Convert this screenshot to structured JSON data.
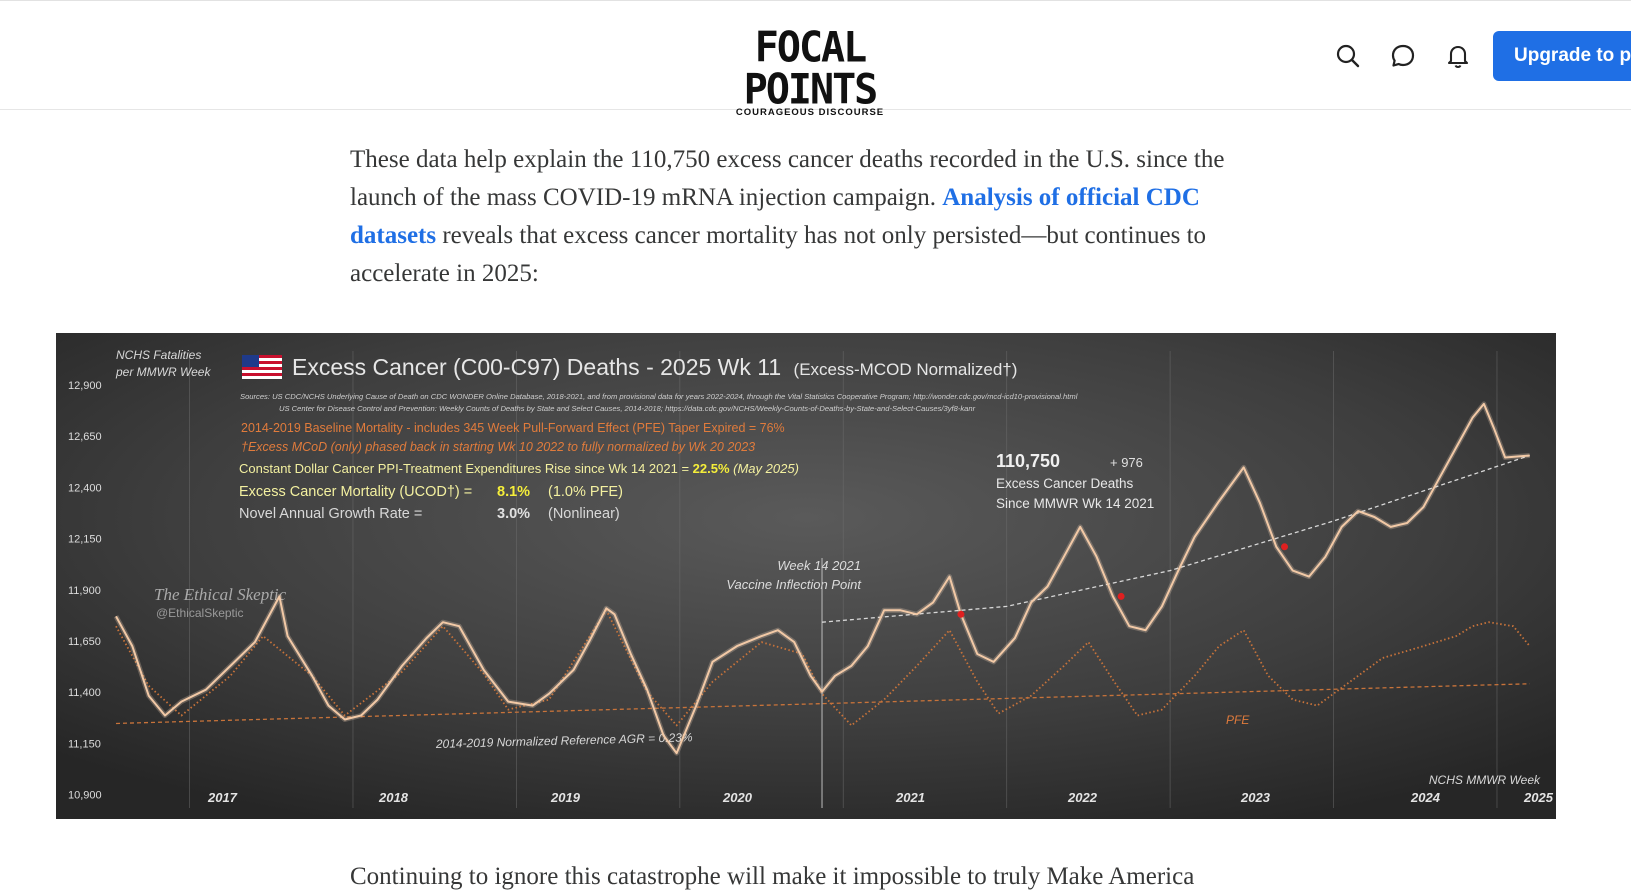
{
  "header": {
    "logo_title": "FOCAL POINTS",
    "logo_subtitle": "COURAGEOUS DISCOURSE",
    "icons": [
      "search-icon",
      "chat-bubble-icon",
      "bell-icon"
    ],
    "upgrade_label": "Upgrade to pa",
    "accent_color": "#1f6fe5"
  },
  "article": {
    "para1_part1": "These data help explain the 110,750 excess cancer deaths recorded in the U.S. since the launch of the mass COVID-19 mRNA injection campaign.",
    "para1_link": "Analysis of official CDC datasets",
    "para1_part2": " reveals that excess cancer mortality has not only persisted—but continues to accelerate in 2025:",
    "para2": "Continuing to ignore this catastrophe will make it impossible to truly Make America"
  },
  "chart_data": {
    "type": "line",
    "title": "Excess Cancer (C00-C97) Deaths - 2025 Wk 11",
    "title_suffix": "(Excess-MCOD  Normalized†)",
    "ylabel_line1": "NCHS Fatalities",
    "ylabel_line2": "per MMWR Week",
    "xlabel": "NCHS MMWR Week",
    "sources_line1": "Sources:  US CDC/NCHS Underlying  Cause of Death on CDC WONDER Online Database, 2018-2021, and from provisional data for years 2022-2024, through the Vital Statistics Cooperative Program; http://wonder.cdc.gov/mcd-icd10-provisional.html",
    "sources_line2": "US Center for Disease Control and Prevention: Weekly  Counts of Deaths by State and Select Causes, 2014-2018; https://data.cdc.gov/NCHS/Weekly-Counts-of-Deaths-by-State-and-Select-Causes/3yf8-kanr",
    "note_baseline": "2014-2019 Baseline Mortality - includes 345 Week Pull-Forward Effect (PFE) Taper Expired =  76%",
    "note_mcod": "†Excess  MCoD (only) phased back in starting  Wk 10 2022 to fully normalized  by Wk 20 2023",
    "note_ppi_label": "Constant Dollar Cancer PPI-Treatment Expenditures Rise since Wk 14 2021  = ",
    "note_ppi_value": "22.5%",
    "note_ppi_suffix": " (May 2025)",
    "excess_label": "Excess Cancer Mortality (UCOD†) =",
    "excess_value": "8.1%",
    "excess_pfe": "(1.0% PFE)",
    "growth_label": "Novel Annual Growth Rate  =",
    "growth_value": "3.0%",
    "growth_suffix": "(Nonlinear)",
    "total_value": "110,750",
    "total_increment": "+ 976",
    "total_label1": "Excess Cancer Deaths",
    "total_label2": "Since MMWR Wk 14 2021",
    "vaccine_label1": "Week 14 2021",
    "vaccine_label2": "Vaccine Inflection Point",
    "reference_label": "2014-2019 Normalized Reference  AGR = 0.23%",
    "pfe_label": "PFE",
    "watermark1": "The Ethical Skeptic",
    "watermark2": "@EthicalSkeptic",
    "y_ticks": [
      "12,900",
      "12,650",
      "12,400",
      "12,150",
      "11,900",
      "11,650",
      "11,400",
      "11,150",
      "10,900"
    ],
    "x_labels": [
      "2017",
      "2018",
      "2019",
      "2020",
      "2021",
      "2022",
      "2023",
      "2024",
      "2025"
    ],
    "ylim": [
      10900,
      12900
    ],
    "xlim": [
      2016.55,
      2025.3
    ],
    "series": [
      {
        "kind": "excess",
        "color": "#f2c9a6",
        "points": [
          [
            2016.55,
            11750
          ],
          [
            2016.65,
            11600
          ],
          [
            2016.75,
            11350
          ],
          [
            2016.85,
            11250
          ],
          [
            2016.95,
            11320
          ],
          [
            2017.1,
            11380
          ],
          [
            2017.25,
            11500
          ],
          [
            2017.4,
            11620
          ],
          [
            2017.55,
            11850
          ],
          [
            2017.6,
            11650
          ],
          [
            2017.75,
            11450
          ],
          [
            2017.85,
            11300
          ],
          [
            2017.95,
            11230
          ],
          [
            2018.05,
            11250
          ],
          [
            2018.15,
            11330
          ],
          [
            2018.3,
            11500
          ],
          [
            2018.45,
            11640
          ],
          [
            2018.55,
            11720
          ],
          [
            2018.65,
            11700
          ],
          [
            2018.8,
            11480
          ],
          [
            2018.95,
            11320
          ],
          [
            2019.1,
            11300
          ],
          [
            2019.2,
            11360
          ],
          [
            2019.35,
            11480
          ],
          [
            2019.45,
            11630
          ],
          [
            2019.55,
            11790
          ],
          [
            2019.6,
            11760
          ],
          [
            2019.7,
            11560
          ],
          [
            2019.8,
            11380
          ],
          [
            2019.9,
            11150
          ],
          [
            2019.98,
            11060
          ],
          [
            2020.1,
            11300
          ],
          [
            2020.2,
            11520
          ],
          [
            2020.35,
            11600
          ],
          [
            2020.5,
            11650
          ],
          [
            2020.6,
            11680
          ],
          [
            2020.7,
            11620
          ],
          [
            2020.8,
            11450
          ],
          [
            2020.87,
            11370
          ],
          [
            2020.95,
            11450
          ],
          [
            2021.05,
            11500
          ],
          [
            2021.15,
            11600
          ],
          [
            2021.25,
            11780
          ],
          [
            2021.35,
            11780
          ],
          [
            2021.45,
            11760
          ],
          [
            2021.55,
            11820
          ],
          [
            2021.65,
            11950
          ],
          [
            2021.72,
            11760
          ],
          [
            2021.82,
            11560
          ],
          [
            2021.92,
            11520
          ],
          [
            2022.05,
            11640
          ],
          [
            2022.15,
            11820
          ],
          [
            2022.25,
            11900
          ],
          [
            2022.35,
            12050
          ],
          [
            2022.45,
            12200
          ],
          [
            2022.55,
            12050
          ],
          [
            2022.65,
            11850
          ],
          [
            2022.75,
            11700
          ],
          [
            2022.85,
            11680
          ],
          [
            2022.95,
            11800
          ],
          [
            2023.05,
            11980
          ],
          [
            2023.15,
            12150
          ],
          [
            2023.3,
            12330
          ],
          [
            2023.45,
            12500
          ],
          [
            2023.55,
            12320
          ],
          [
            2023.65,
            12100
          ],
          [
            2023.75,
            11980
          ],
          [
            2023.85,
            11950
          ],
          [
            2023.95,
            12050
          ],
          [
            2024.05,
            12200
          ],
          [
            2024.15,
            12280
          ],
          [
            2024.25,
            12250
          ],
          [
            2024.35,
            12200
          ],
          [
            2024.45,
            12220
          ],
          [
            2024.55,
            12300
          ],
          [
            2024.65,
            12450
          ],
          [
            2024.75,
            12600
          ],
          [
            2024.85,
            12750
          ],
          [
            2024.92,
            12820
          ],
          [
            2024.98,
            12700
          ],
          [
            2025.05,
            12550
          ],
          [
            2025.2,
            12560
          ]
        ]
      },
      {
        "kind": "pfe",
        "color": "#c8733a",
        "points": [
          [
            2016.55,
            11700
          ],
          [
            2016.75,
            11400
          ],
          [
            2016.95,
            11250
          ],
          [
            2017.25,
            11450
          ],
          [
            2017.45,
            11650
          ],
          [
            2017.75,
            11450
          ],
          [
            2017.95,
            11250
          ],
          [
            2018.3,
            11470
          ],
          [
            2018.55,
            11700
          ],
          [
            2018.8,
            11460
          ],
          [
            2018.95,
            11280
          ],
          [
            2019.2,
            11330
          ],
          [
            2019.55,
            11780
          ],
          [
            2019.8,
            11370
          ],
          [
            2019.98,
            11200
          ],
          [
            2020.2,
            11420
          ],
          [
            2020.5,
            11620
          ],
          [
            2020.75,
            11560
          ],
          [
            2020.87,
            11360
          ],
          [
            2021.05,
            11200
          ],
          [
            2021.25,
            11330
          ],
          [
            2021.45,
            11500
          ],
          [
            2021.65,
            11680
          ],
          [
            2021.82,
            11420
          ],
          [
            2021.95,
            11260
          ],
          [
            2022.15,
            11350
          ],
          [
            2022.35,
            11500
          ],
          [
            2022.5,
            11620
          ],
          [
            2022.65,
            11430
          ],
          [
            2022.8,
            11250
          ],
          [
            2022.95,
            11280
          ],
          [
            2023.15,
            11450
          ],
          [
            2023.3,
            11600
          ],
          [
            2023.45,
            11680
          ],
          [
            2023.6,
            11450
          ],
          [
            2023.75,
            11330
          ],
          [
            2023.9,
            11300
          ],
          [
            2024.1,
            11420
          ],
          [
            2024.3,
            11540
          ],
          [
            2024.55,
            11600
          ],
          [
            2024.75,
            11650
          ],
          [
            2024.85,
            11700
          ],
          [
            2024.95,
            11720
          ],
          [
            2025.1,
            11700
          ],
          [
            2025.2,
            11600
          ]
        ]
      }
    ],
    "reference_line": [
      [
        2016.55,
        11210
      ],
      [
        2025.2,
        11410
      ]
    ],
    "trend_line": [
      [
        2020.87,
        11720
      ],
      [
        2022.0,
        11800
      ],
      [
        2023.0,
        11980
      ],
      [
        2024.0,
        12230
      ],
      [
        2025.2,
        12560
      ]
    ],
    "marker_color": "#e02020",
    "markers": [
      [
        2021.72,
        11760
      ],
      [
        2022.7,
        11850
      ],
      [
        2023.7,
        12100
      ]
    ]
  }
}
